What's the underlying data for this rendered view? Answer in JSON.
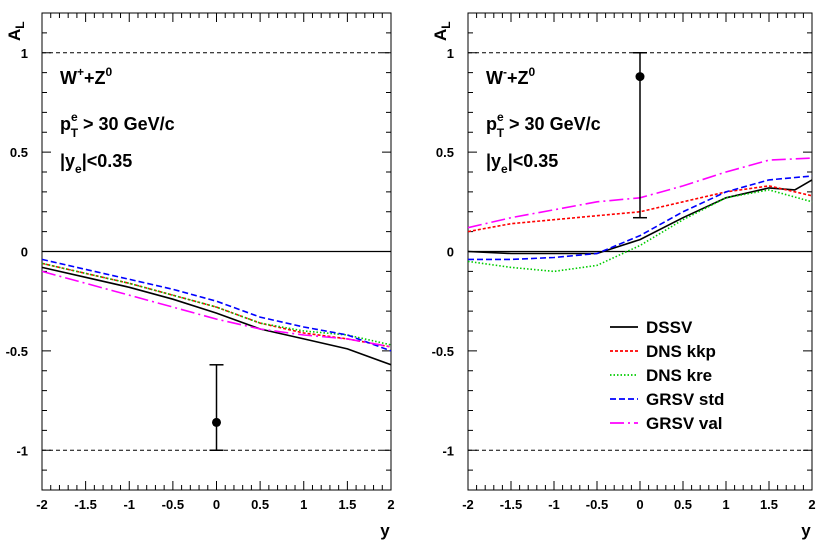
{
  "chart_data": [
    {
      "type": "line",
      "panel": "left",
      "ylabel": "A",
      "ylabel_sub": "L",
      "xlabel": "y",
      "xlim": [
        -2,
        2
      ],
      "ylim": [
        -1.2,
        1.2
      ],
      "x_ticks": [
        "-2",
        "-1.5",
        "-1",
        "-0.5",
        "0",
        "0.5",
        "1",
        "1.5",
        "2"
      ],
      "y_ticks": [
        "1",
        "0.5",
        "0",
        "-0.5",
        "-1"
      ],
      "reference_lines": [
        {
          "y": 1,
          "style": "dashed"
        },
        {
          "y": 0,
          "style": "solid"
        },
        {
          "y": -1,
          "style": "dashed"
        }
      ],
      "annotation": {
        "line1": {
          "base": "W",
          "sup1": "+",
          "mid": "+Z",
          "sup2": "0"
        },
        "line2": {
          "base": "p",
          "sup": "e",
          "sub": "T",
          "rest": " > 30 GeV/c"
        },
        "line3": {
          "pre": "|y",
          "sub": "e",
          "post": "|<0.35"
        }
      },
      "data_point": {
        "x": 0.0,
        "y": -0.86,
        "err_low": -1.0,
        "err_high": -0.57
      },
      "series": [
        {
          "name": "DSSV",
          "color": "#000000",
          "dash": "solid",
          "x": [
            -2,
            -1.5,
            -1,
            -0.5,
            0,
            0.5,
            1,
            1.5,
            2
          ],
          "y": [
            -0.08,
            -0.13,
            -0.18,
            -0.24,
            -0.31,
            -0.39,
            -0.44,
            -0.49,
            -0.57
          ]
        },
        {
          "name": "DNS kkp",
          "color": "#ff0000",
          "dash": "dotted-red",
          "x": [
            -2,
            -1.5,
            -1,
            -0.5,
            0,
            0.5,
            1,
            1.5,
            2
          ],
          "y": [
            -0.06,
            -0.11,
            -0.16,
            -0.22,
            -0.28,
            -0.36,
            -0.41,
            -0.44,
            -0.48
          ]
        },
        {
          "name": "DNS kre",
          "color": "#00cc00",
          "dash": "dotted",
          "x": [
            -2,
            -1.5,
            -1,
            -0.5,
            0,
            0.5,
            1,
            1.5,
            2
          ],
          "y": [
            -0.06,
            -0.11,
            -0.16,
            -0.22,
            -0.28,
            -0.36,
            -0.4,
            -0.42,
            -0.47
          ]
        },
        {
          "name": "GRSV std",
          "color": "#0000ff",
          "dash": "dashed",
          "x": [
            -2,
            -1.5,
            -1,
            -0.5,
            0,
            0.5,
            1,
            1.5,
            2
          ],
          "y": [
            -0.04,
            -0.09,
            -0.14,
            -0.19,
            -0.25,
            -0.33,
            -0.38,
            -0.42,
            -0.5
          ]
        },
        {
          "name": "GRSV val",
          "color": "#ff00ff",
          "dash": "longdash",
          "x": [
            -2,
            -1.5,
            -1,
            -0.5,
            0,
            0.5,
            1,
            1.5,
            2
          ],
          "y": [
            -0.1,
            -0.16,
            -0.22,
            -0.28,
            -0.34,
            -0.39,
            -0.42,
            -0.44,
            -0.48
          ]
        }
      ]
    },
    {
      "type": "line",
      "panel": "right",
      "ylabel": "A",
      "ylabel_sub": "L",
      "xlabel": "y",
      "xlim": [
        -2,
        2
      ],
      "ylim": [
        -1.2,
        1.2
      ],
      "x_ticks": [
        "-2",
        "-1.5",
        "-1",
        "-0.5",
        "0",
        "0.5",
        "1",
        "1.5",
        "2"
      ],
      "y_ticks": [
        "1",
        "0.5",
        "0",
        "-0.5",
        "-1"
      ],
      "reference_lines": [
        {
          "y": 1,
          "style": "dashed"
        },
        {
          "y": 0,
          "style": "solid"
        },
        {
          "y": -1,
          "style": "dashed"
        }
      ],
      "annotation": {
        "line1": {
          "base": "W",
          "sup1": "-",
          "mid": "+Z",
          "sup2": "0"
        },
        "line2": {
          "base": "p",
          "sup": "e",
          "sub": "T",
          "rest": " > 30 GeV/c"
        },
        "line3": {
          "pre": "|y",
          "sub": "e",
          "post": "|<0.35"
        }
      },
      "data_point": {
        "x": 0.0,
        "y": 0.88,
        "err_low": 0.17,
        "err_high": 1.0
      },
      "legend": {
        "position": "bottom-right"
      },
      "series": [
        {
          "name": "DSSV",
          "color": "#000000",
          "dash": "solid",
          "x": [
            -2,
            -1.5,
            -1,
            -0.5,
            0,
            0.5,
            1,
            1.5,
            1.8,
            2
          ],
          "y": [
            0.0,
            -0.01,
            -0.01,
            -0.01,
            0.06,
            0.17,
            0.27,
            0.32,
            0.31,
            0.36
          ]
        },
        {
          "name": "DNS kkp",
          "color": "#ff0000",
          "dash": "dotted-red",
          "x": [
            -2,
            -1.5,
            -1,
            -0.5,
            0,
            0.5,
            1,
            1.5,
            2
          ],
          "y": [
            0.1,
            0.14,
            0.16,
            0.18,
            0.2,
            0.25,
            0.3,
            0.33,
            0.28
          ]
        },
        {
          "name": "DNS kre",
          "color": "#00cc00",
          "dash": "dotted",
          "x": [
            -2,
            -1.5,
            -1,
            -0.5,
            0,
            0.5,
            1,
            1.5,
            2
          ],
          "y": [
            -0.05,
            -0.08,
            -0.1,
            -0.07,
            0.03,
            0.16,
            0.27,
            0.31,
            0.25
          ]
        },
        {
          "name": "GRSV std",
          "color": "#0000ff",
          "dash": "dashed",
          "x": [
            -2,
            -1.5,
            -1,
            -0.5,
            0,
            0.5,
            1,
            1.5,
            2
          ],
          "y": [
            -0.04,
            -0.04,
            -0.03,
            -0.01,
            0.08,
            0.2,
            0.3,
            0.36,
            0.38
          ]
        },
        {
          "name": "GRSV val",
          "color": "#ff00ff",
          "dash": "longdash",
          "x": [
            -2,
            -1.5,
            -1,
            -0.5,
            0,
            0.5,
            1,
            1.5,
            2
          ],
          "y": [
            0.12,
            0.17,
            0.21,
            0.25,
            0.27,
            0.33,
            0.4,
            0.46,
            0.47
          ]
        }
      ]
    }
  ]
}
